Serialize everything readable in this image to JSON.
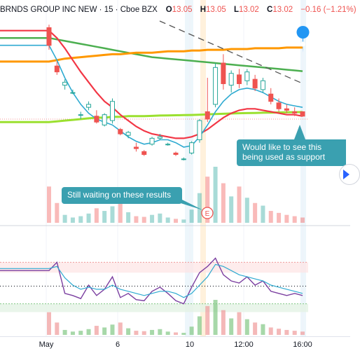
{
  "header": {
    "symbol": "BRNDS GROUP INC NEW",
    "interval": "15",
    "exchange": "Cboe BZX",
    "open_label": "O",
    "open": "13.05",
    "high_label": "H",
    "high": "13.05",
    "low_label": "L",
    "low": "13.02",
    "close_label": "C",
    "close": "13.02",
    "change": "−0.16 (−1.21%)"
  },
  "colors": {
    "up": "#26a69a",
    "down": "#ef5350",
    "ma_long": "#4caf50",
    "ma_orange": "#ff9800",
    "ma_red": "#f23645",
    "ma_blue": "#2eaad1",
    "ma_lime": "#9be02f",
    "rsi": "#7b3fa0",
    "callout": "#3aa0b0"
  },
  "annotations": {
    "callout_results": "Still waiting on these results",
    "callout_support": "Would like to see this being used as support",
    "earnings_marker": "E"
  },
  "xaxis": {
    "labels": [
      "May",
      "6",
      "10",
      "12:00",
      "16:00"
    ]
  },
  "chart_data": {
    "type": "candlestick",
    "candles": [
      {
        "o": 13.62,
        "h": 13.64,
        "l": 13.47,
        "c": 13.5
      },
      {
        "o": 13.36,
        "h": 13.39,
        "l": 13.3,
        "c": 13.32
      },
      {
        "o": 13.23,
        "h": 13.27,
        "l": 13.2,
        "c": 13.25
      },
      {
        "o": 13.18,
        "h": 13.2,
        "l": 13.17,
        "c": 13.18
      },
      {
        "o": 13.03,
        "h": 13.05,
        "l": 13.0,
        "c": 13.03
      },
      {
        "o": 13.08,
        "h": 13.12,
        "l": 13.06,
        "c": 13.1
      },
      {
        "o": 13.02,
        "h": 13.06,
        "l": 12.97,
        "c": 12.98
      },
      {
        "o": 12.96,
        "h": 13.04,
        "l": 12.95,
        "c": 13.03
      },
      {
        "o": 12.99,
        "h": 13.14,
        "l": 12.97,
        "c": 13.12
      },
      {
        "o": 12.93,
        "h": 12.94,
        "l": 12.89,
        "c": 12.9
      },
      {
        "o": 12.89,
        "h": 12.92,
        "l": 12.87,
        "c": 12.91
      },
      {
        "o": 12.81,
        "h": 12.84,
        "l": 12.78,
        "c": 12.8
      },
      {
        "o": 12.78,
        "h": 12.79,
        "l": 12.75,
        "c": 12.76
      },
      {
        "o": 12.83,
        "h": 12.88,
        "l": 12.82,
        "c": 12.87
      },
      {
        "o": 12.87,
        "h": 12.9,
        "l": 12.86,
        "c": 12.88
      },
      {
        "o": 12.83,
        "h": 12.84,
        "l": 12.82,
        "c": 12.83
      },
      {
        "o": 12.77,
        "h": 12.78,
        "l": 12.75,
        "c": 12.76
      },
      {
        "o": 12.73,
        "h": 12.74,
        "l": 12.72,
        "c": 12.73
      },
      {
        "o": 12.77,
        "h": 12.85,
        "l": 12.76,
        "c": 12.84
      },
      {
        "o": 12.86,
        "h": 13.0,
        "l": 12.84,
        "c": 12.99
      },
      {
        "o": 13.05,
        "h": 13.28,
        "l": 12.98,
        "c": 13.0
      },
      {
        "o": 13.1,
        "h": 13.38,
        "l": 13.08,
        "c": 13.35
      },
      {
        "o": 13.38,
        "h": 13.44,
        "l": 13.2,
        "c": 13.24
      },
      {
        "o": 13.23,
        "h": 13.33,
        "l": 13.18,
        "c": 13.31
      },
      {
        "o": 13.3,
        "h": 13.34,
        "l": 13.21,
        "c": 13.24
      },
      {
        "o": 13.26,
        "h": 13.34,
        "l": 13.23,
        "c": 13.32
      },
      {
        "o": 13.27,
        "h": 13.3,
        "l": 13.19,
        "c": 13.21
      },
      {
        "o": 13.2,
        "h": 13.28,
        "l": 13.18,
        "c": 13.26
      },
      {
        "o": 13.17,
        "h": 13.21,
        "l": 13.1,
        "c": 13.12
      },
      {
        "o": 13.11,
        "h": 13.14,
        "l": 13.05,
        "c": 13.07
      },
      {
        "o": 13.07,
        "h": 13.1,
        "l": 13.04,
        "c": 13.06
      },
      {
        "o": 13.05,
        "h": 13.08,
        "l": 13.02,
        "c": 13.04
      },
      {
        "o": 13.05,
        "h": 13.05,
        "l": 13.02,
        "c": 13.02
      }
    ],
    "volume": [
      55,
      30,
      12,
      8,
      10,
      14,
      22,
      18,
      25,
      30,
      16,
      10,
      9,
      12,
      14,
      8,
      6,
      5,
      20,
      45,
      70,
      85,
      60,
      40,
      55,
      38,
      30,
      26,
      18,
      15,
      12,
      10,
      8
    ],
    "ma_long": [
      13.55,
      13.54,
      13.53,
      13.52,
      13.51,
      13.5,
      13.49,
      13.48,
      13.47,
      13.46,
      13.45,
      13.44,
      13.43,
      13.42,
      13.415,
      13.41,
      13.405,
      13.4,
      13.395,
      13.39,
      13.385,
      13.38,
      13.375,
      13.37,
      13.365,
      13.36,
      13.355,
      13.35,
      13.345,
      13.34,
      13.335,
      13.33,
      13.325
    ],
    "ma_orange": [
      13.39,
      13.4,
      13.41,
      13.415,
      13.42,
      13.425,
      13.43,
      13.435,
      13.44,
      13.44,
      13.445,
      13.45,
      13.45,
      13.45,
      13.455,
      13.46,
      13.46,
      13.46,
      13.465,
      13.465,
      13.47,
      13.47,
      13.47,
      13.475,
      13.475,
      13.475,
      13.48,
      13.48,
      13.48,
      13.48,
      13.485,
      13.485,
      13.485
    ],
    "ma_red": [
      13.6,
      13.55,
      13.48,
      13.4,
      13.32,
      13.25,
      13.18,
      13.12,
      13.08,
      13.03,
      12.99,
      12.95,
      12.92,
      12.9,
      12.89,
      12.88,
      12.87,
      12.87,
      12.88,
      12.9,
      12.93,
      12.97,
      13.01,
      13.04,
      13.06,
      13.07,
      13.07,
      13.06,
      13.05,
      13.04,
      13.03,
      13.03,
      13.02
    ],
    "ma_blue": [
      13.5,
      13.4,
      13.28,
      13.18,
      13.1,
      13.04,
      13.0,
      12.98,
      12.96,
      12.92,
      12.88,
      12.85,
      12.83,
      12.84,
      12.86,
      12.86,
      12.84,
      12.81,
      12.82,
      12.88,
      12.96,
      13.05,
      13.12,
      13.17,
      13.2,
      13.21,
      13.2,
      13.18,
      13.15,
      13.12,
      13.1,
      13.09,
      13.08
    ],
    "ma_lime": [
      12.98,
      12.985,
      12.99,
      12.995,
      13.0,
      13.005,
      13.01,
      13.01,
      13.015,
      13.015,
      13.02,
      13.02,
      13.02,
      13.022,
      13.024,
      13.025,
      13.026,
      13.027,
      13.028,
      13.03,
      13.032,
      13.034,
      13.036,
      13.038,
      13.04,
      13.041,
      13.042,
      13.043,
      13.044,
      13.045,
      13.046,
      13.047,
      13.048
    ],
    "rsi": [
      62,
      70,
      40,
      38,
      35,
      48,
      38,
      44,
      56,
      36,
      40,
      34,
      33,
      42,
      46,
      40,
      33,
      30,
      46,
      60,
      66,
      74,
      58,
      52,
      50,
      56,
      48,
      52,
      42,
      40,
      38,
      40,
      38
    ],
    "rsi_signal": [
      64,
      66,
      55,
      48,
      44,
      46,
      44,
      44,
      48,
      44,
      42,
      40,
      38,
      40,
      42,
      42,
      40,
      36,
      40,
      48,
      56,
      68,
      66,
      62,
      58,
      56,
      54,
      52,
      48,
      46,
      44,
      42,
      40
    ]
  }
}
